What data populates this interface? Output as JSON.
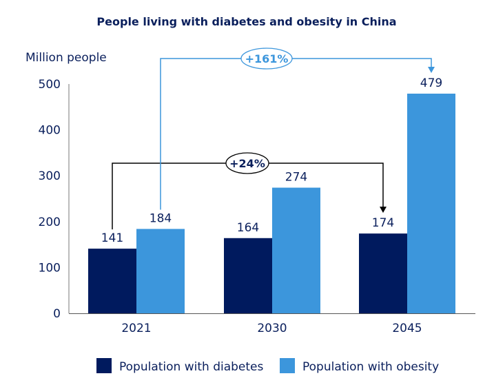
{
  "chart_data": {
    "type": "bar",
    "title": "People living with diabetes and obesity in China",
    "ylabel": "Million people",
    "xlabel": "",
    "categories": [
      "2021",
      "2030",
      "2045"
    ],
    "series": [
      {
        "name": "Population with diabetes",
        "values": [
          141,
          164,
          174
        ],
        "color": "#001A5E"
      },
      {
        "name": "Population with obesity",
        "values": [
          184,
          274,
          479
        ],
        "color": "#3C96DC"
      }
    ],
    "ylim": [
      0,
      500
    ],
    "yticks": [
      0,
      100,
      200,
      300,
      400,
      500
    ],
    "grid": false,
    "legend": "bottom",
    "annotations": [
      {
        "label": "+24%",
        "series": 0,
        "from": "2021",
        "to": "2045",
        "color": "#000000"
      },
      {
        "label": "+161%",
        "series": 1,
        "from": "2021",
        "to": "2045",
        "color": "#3C96DC"
      }
    ]
  }
}
